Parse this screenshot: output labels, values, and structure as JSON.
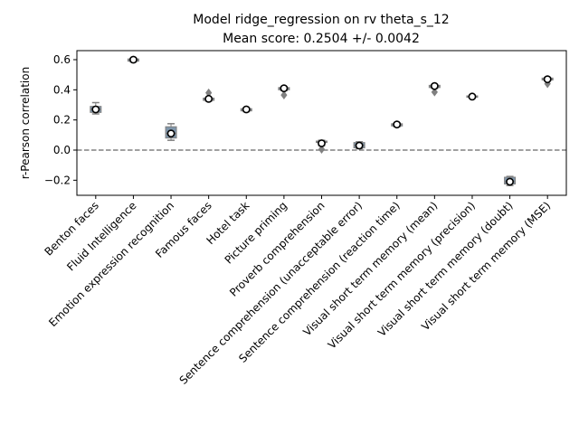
{
  "chart_data": {
    "type": "box",
    "title_line1": "Model ridge_regression on rv theta_s_12",
    "title_line2": "Mean score: 0.2504 +/- 0.0042",
    "xlabel": "",
    "ylabel": "r-Pearson correlation",
    "ylim": [
      -0.3,
      0.66
    ],
    "yticks": [
      -0.2,
      0.0,
      0.2,
      0.4,
      0.6
    ],
    "ytick_labels": [
      "−0.2",
      "0.0",
      "0.2",
      "0.4",
      "0.6"
    ],
    "reference_line": 0.0,
    "colors": {
      "box": "#7f96ab",
      "line": "#808080",
      "mean_marker": "#ffffff"
    },
    "categories": [
      "Benton faces",
      "Fluid Intelligence",
      "Emotion expression recognition",
      "Famous faces",
      "Hotel task",
      "Picture priming",
      "Proverb comprehension",
      "Sentence comprehension (unacceptable error)",
      "Sentence comprehension (reaction time)",
      "Visual short term memory (mean)",
      "Visual short term memory (precision)",
      "Visual short term memory (doubt)",
      "Visual short term memory (MSE)"
    ],
    "boxes": [
      {
        "whislo": 0.24,
        "q1": 0.25,
        "med": 0.27,
        "q3": 0.29,
        "whishi": 0.315,
        "mean": 0.27,
        "fliers": []
      },
      {
        "whislo": 0.585,
        "q1": 0.59,
        "med": 0.6,
        "q3": 0.605,
        "whishi": 0.61,
        "mean": 0.6,
        "fliers": []
      },
      {
        "whislo": 0.065,
        "q1": 0.08,
        "med": 0.11,
        "q3": 0.155,
        "whishi": 0.175,
        "mean": 0.11,
        "fliers": []
      },
      {
        "whislo": 0.325,
        "q1": 0.33,
        "med": 0.335,
        "q3": 0.345,
        "whishi": 0.35,
        "mean": 0.34,
        "fliers": [
          0.38
        ]
      },
      {
        "whislo": 0.255,
        "q1": 0.26,
        "med": 0.265,
        "q3": 0.275,
        "whishi": 0.28,
        "mean": 0.27,
        "fliers": []
      },
      {
        "whislo": 0.395,
        "q1": 0.4,
        "med": 0.41,
        "q3": 0.415,
        "whishi": 0.42,
        "mean": 0.41,
        "fliers": [
          0.365
        ]
      },
      {
        "whislo": 0.03,
        "q1": 0.05,
        "med": 0.055,
        "q3": 0.06,
        "whishi": 0.065,
        "mean": 0.045,
        "fliers": [
          0.005
        ]
      },
      {
        "whislo": 0.01,
        "q1": 0.015,
        "med": 0.03,
        "q3": 0.05,
        "whishi": 0.055,
        "mean": 0.03,
        "fliers": []
      },
      {
        "whislo": 0.155,
        "q1": 0.16,
        "med": 0.17,
        "q3": 0.175,
        "whishi": 0.18,
        "mean": 0.17,
        "fliers": []
      },
      {
        "whislo": 0.41,
        "q1": 0.415,
        "med": 0.425,
        "q3": 0.43,
        "whishi": 0.435,
        "mean": 0.425,
        "fliers": [
          0.385
        ]
      },
      {
        "whislo": 0.345,
        "q1": 0.35,
        "med": 0.355,
        "q3": 0.36,
        "whishi": 0.365,
        "mean": 0.355,
        "fliers": []
      },
      {
        "whislo": -0.235,
        "q1": -0.225,
        "med": -0.21,
        "q3": -0.18,
        "whishi": -0.175,
        "mean": -0.21,
        "fliers": []
      },
      {
        "whislo": 0.46,
        "q1": 0.465,
        "med": 0.47,
        "q3": 0.478,
        "whishi": 0.482,
        "mean": 0.47,
        "fliers": [
          0.44
        ]
      }
    ]
  }
}
